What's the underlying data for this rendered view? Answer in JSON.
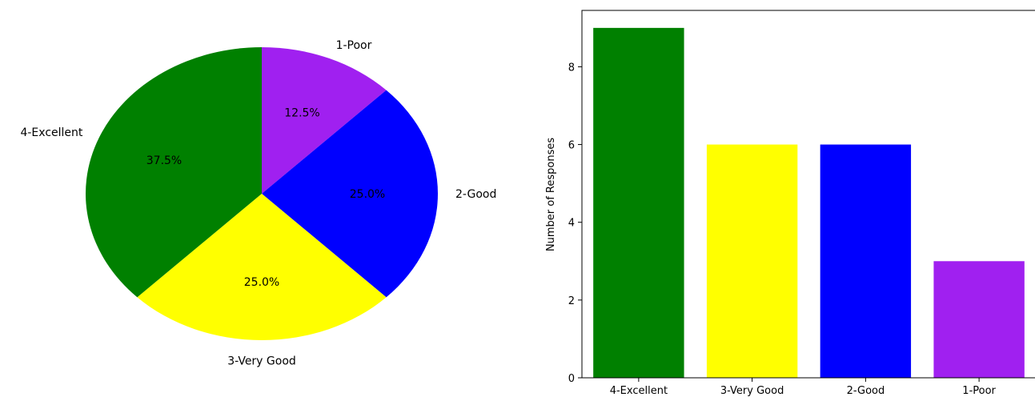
{
  "chart_data": [
    {
      "type": "pie",
      "categories": [
        "1-Poor",
        "2-Good",
        "3-Very Good",
        "4-Excellent"
      ],
      "values": [
        12.5,
        25.0,
        25.0,
        37.5
      ],
      "value_labels": [
        "12.5%",
        "25.0%",
        "25.0%",
        "37.5%"
      ],
      "colors": [
        "#a020f0",
        "#0000ff",
        "#ffff00",
        "#008000"
      ],
      "start": "top, clockwise"
    },
    {
      "type": "bar",
      "categories": [
        "4-Excellent",
        "3-Very Good",
        "2-Good",
        "1-Poor"
      ],
      "values": [
        9,
        6,
        6,
        3
      ],
      "colors": [
        "#008000",
        "#ffff00",
        "#0000ff",
        "#a020f0"
      ],
      "ylabel": "Number of Responses",
      "ylim": [
        0,
        9.45
      ],
      "yticks": [
        0,
        2,
        4,
        6,
        8
      ],
      "grid": false
    }
  ]
}
